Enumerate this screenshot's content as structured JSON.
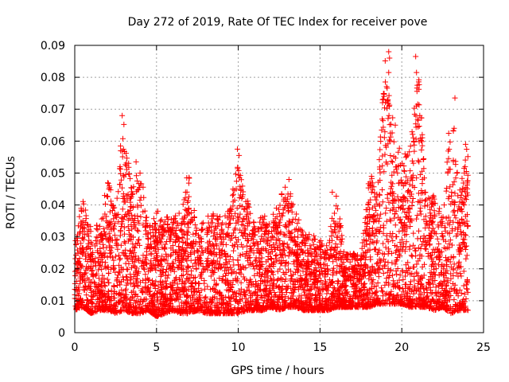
{
  "chart_data": {
    "type": "scatter",
    "title": "Day 272 of 2019, Rate Of TEC Index for receiver pove",
    "xlabel": "GPS time / hours",
    "ylabel": "ROTI / TECUs",
    "xlim": [
      0,
      25
    ],
    "ylim": [
      0,
      0.09
    ],
    "x_ticks": [
      "0",
      "5",
      "10",
      "15",
      "20",
      "25"
    ],
    "y_ticks": [
      "0",
      "0.01",
      "0.02",
      "0.03",
      "0.04",
      "0.05",
      "0.06",
      "0.07",
      "0.08",
      "0.09"
    ],
    "grid": true,
    "legend": "none",
    "marker": "+",
    "color": "#ff0000",
    "envelope_hours": [
      0,
      0.5,
      1,
      1.5,
      2,
      2.5,
      3,
      3.5,
      4,
      4.5,
      5,
      5.5,
      6,
      6.5,
      7,
      7.5,
      8,
      8.5,
      9,
      9.5,
      10,
      10.5,
      11,
      11.5,
      12,
      12.5,
      13,
      13.5,
      14,
      14.5,
      15,
      15.5,
      16,
      16.5,
      17,
      17.5,
      18,
      18.5,
      19,
      19.5,
      20,
      20.5,
      21,
      21.5,
      22,
      22.5,
      23,
      23.5,
      24
    ],
    "envelope_upper_roti": [
      0.03,
      0.042,
      0.033,
      0.035,
      0.048,
      0.04,
      0.068,
      0.045,
      0.053,
      0.033,
      0.039,
      0.036,
      0.037,
      0.038,
      0.049,
      0.032,
      0.036,
      0.038,
      0.036,
      0.04,
      0.057,
      0.043,
      0.034,
      0.038,
      0.035,
      0.043,
      0.048,
      0.038,
      0.032,
      0.031,
      0.029,
      0.029,
      0.044,
      0.025,
      0.025,
      0.024,
      0.05,
      0.045,
      0.088,
      0.065,
      0.056,
      0.058,
      0.086,
      0.042,
      0.045,
      0.035,
      0.073,
      0.044,
      0.059
    ],
    "envelope_lower_roti": [
      0.007,
      0.008,
      0.006,
      0.007,
      0.007,
      0.006,
      0.007,
      0.006,
      0.006,
      0.007,
      0.005,
      0.006,
      0.007,
      0.006,
      0.006,
      0.007,
      0.006,
      0.006,
      0.006,
      0.006,
      0.006,
      0.007,
      0.007,
      0.007,
      0.008,
      0.007,
      0.008,
      0.008,
      0.007,
      0.007,
      0.007,
      0.007,
      0.008,
      0.008,
      0.008,
      0.008,
      0.008,
      0.009,
      0.009,
      0.009,
      0.009,
      0.008,
      0.008,
      0.008,
      0.007,
      0.008,
      0.006,
      0.007,
      0.007
    ],
    "points": [
      {
        "x": 2.9,
        "y": 0.068
      },
      {
        "x": 2.8,
        "y": 0.0585
      },
      {
        "x": 3.75,
        "y": 0.0535
      },
      {
        "x": 6.85,
        "y": 0.0485
      },
      {
        "x": 9.95,
        "y": 0.0575
      },
      {
        "x": 10.05,
        "y": 0.0555
      },
      {
        "x": 13.1,
        "y": 0.048
      },
      {
        "x": 15.75,
        "y": 0.044
      },
      {
        "x": 18.15,
        "y": 0.049
      },
      {
        "x": 19.2,
        "y": 0.088
      },
      {
        "x": 19.25,
        "y": 0.086
      },
      {
        "x": 19.2,
        "y": 0.0815
      },
      {
        "x": 19.15,
        "y": 0.073
      },
      {
        "x": 19.6,
        "y": 0.065
      },
      {
        "x": 19.3,
        "y": 0.0625
      },
      {
        "x": 20.2,
        "y": 0.056
      },
      {
        "x": 20.85,
        "y": 0.0865
      },
      {
        "x": 20.9,
        "y": 0.0815
      },
      {
        "x": 20.95,
        "y": 0.0775
      },
      {
        "x": 21.1,
        "y": 0.068
      },
      {
        "x": 23.25,
        "y": 0.0735
      },
      {
        "x": 23.2,
        "y": 0.064
      },
      {
        "x": 23.9,
        "y": 0.059
      },
      {
        "x": 23.15,
        "y": 0.054
      },
      {
        "x": 23.95,
        "y": 0.0505
      }
    ]
  }
}
